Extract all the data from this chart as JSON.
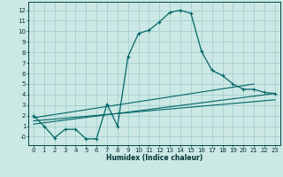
{
  "xlabel": "Humidex (Indice chaleur)",
  "bg_color": "#cce8e4",
  "grid_color": "#99cccc",
  "line_color": "#006666",
  "xlim": [
    -0.5,
    23.5
  ],
  "ylim": [
    -0.8,
    12.8
  ],
  "xticks": [
    0,
    1,
    2,
    3,
    4,
    5,
    6,
    7,
    8,
    9,
    10,
    11,
    12,
    13,
    14,
    15,
    16,
    17,
    18,
    19,
    20,
    21,
    22,
    23
  ],
  "yticks": [
    0,
    1,
    2,
    3,
    4,
    5,
    6,
    7,
    8,
    9,
    10,
    11,
    12
  ],
  "ytick_labels": [
    "-0",
    "1",
    "2",
    "3",
    "4",
    "5",
    "6",
    "7",
    "8",
    "9",
    "10",
    "11",
    "12"
  ],
  "curve1_x": [
    0,
    1,
    2,
    3,
    4,
    5,
    6,
    7,
    8,
    9,
    10,
    11,
    12,
    13,
    14,
    15,
    16,
    17,
    18,
    19,
    20,
    21,
    22,
    23
  ],
  "curve1_y": [
    2.0,
    1.0,
    -0.1,
    0.7,
    0.7,
    -0.2,
    -0.2,
    3.1,
    1.0,
    7.6,
    9.8,
    10.1,
    10.9,
    11.8,
    12.0,
    11.7,
    8.1,
    6.3,
    5.8,
    5.0,
    4.5,
    4.5,
    4.2,
    4.1
  ],
  "curve2_x": [
    0,
    21
  ],
  "curve2_y": [
    1.8,
    5.0
  ],
  "curve3_x": [
    0,
    23
  ],
  "curve3_y": [
    1.5,
    3.5
  ],
  "curve4_x": [
    0,
    23
  ],
  "curve4_y": [
    1.2,
    4.1
  ]
}
